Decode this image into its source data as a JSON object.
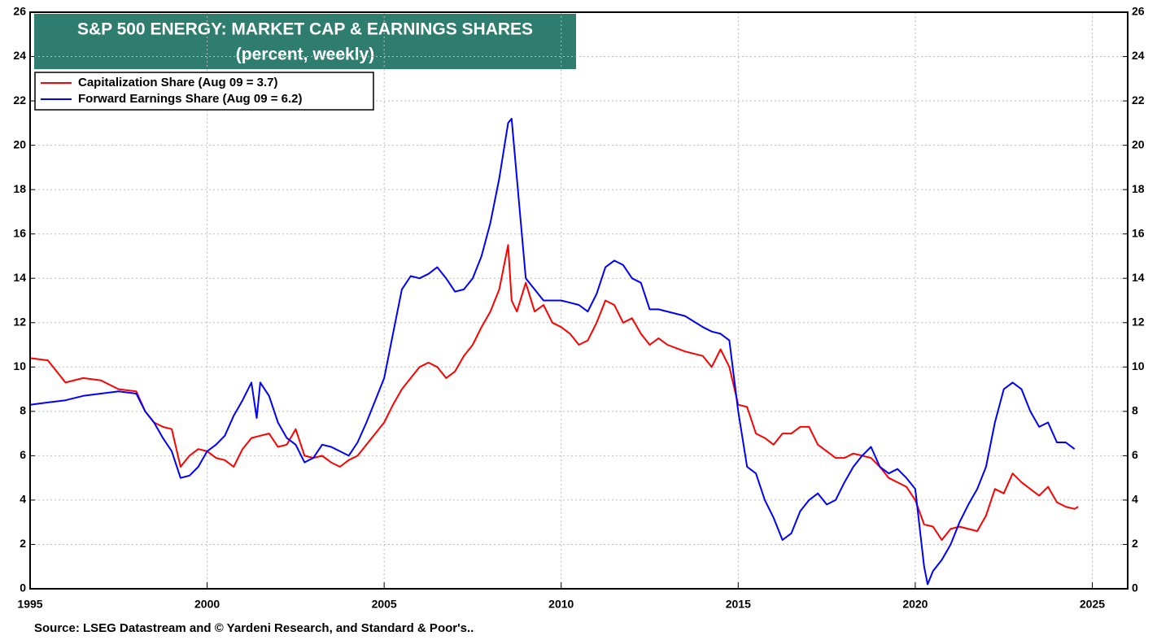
{
  "chart_data": {
    "type": "line",
    "title": "S&P 500 ENERGY: MARKET CAP & EARNINGS SHARES",
    "subtitle": "(percent, weekly)",
    "source": "Source: LSEG Datastream and © Yardeni Research, and Standard & Poor's..",
    "xlim": [
      1995,
      2026
    ],
    "xticks": [
      1995,
      2000,
      2005,
      2010,
      2015,
      2020,
      2025
    ],
    "ylim": [
      0,
      26
    ],
    "yticks": [
      0,
      2,
      4,
      6,
      8,
      10,
      12,
      14,
      16,
      18,
      20,
      22,
      24,
      26
    ],
    "y2lim": [
      0,
      26
    ],
    "y2ticks": [
      0,
      2,
      4,
      6,
      8,
      10,
      12,
      14,
      16,
      18,
      20,
      22,
      24,
      26
    ],
    "grid": true,
    "legend": "upper left",
    "series": [
      {
        "name": "Capitalization Share  (Aug 09 = 3.7)",
        "color": "#ff0000",
        "x": [
          1995,
          1995.5,
          1996,
          1996.5,
          1997,
          1997.5,
          1998,
          1998.25,
          1998.5,
          1998.75,
          1999,
          1999.25,
          1999.5,
          1999.75,
          2000,
          2000.25,
          2000.5,
          2000.75,
          2001,
          2001.25,
          2001.5,
          2001.75,
          2002,
          2002.25,
          2002.5,
          2002.75,
          2003,
          2003.25,
          2003.5,
          2003.75,
          2004,
          2004.25,
          2004.5,
          2004.75,
          2005,
          2005.25,
          2005.5,
          2005.75,
          2006,
          2006.25,
          2006.5,
          2006.75,
          2007,
          2007.25,
          2007.5,
          2007.75,
          2008,
          2008.25,
          2008.5,
          2008.6,
          2008.75,
          2009,
          2009.25,
          2009.5,
          2009.75,
          2010,
          2010.25,
          2010.5,
          2010.75,
          2011,
          2011.25,
          2011.5,
          2011.75,
          2012,
          2012.25,
          2012.5,
          2012.75,
          2013,
          2013.5,
          2014,
          2014.25,
          2014.5,
          2014.75,
          2015,
          2015.25,
          2015.5,
          2015.75,
          2016,
          2016.25,
          2016.5,
          2016.75,
          2017,
          2017.25,
          2017.5,
          2017.75,
          2018,
          2018.25,
          2018.5,
          2018.75,
          2019,
          2019.25,
          2019.5,
          2019.75,
          2020,
          2020.25,
          2020.5,
          2020.75,
          2021,
          2021.25,
          2021.5,
          2021.75,
          2022,
          2022.25,
          2022.5,
          2022.75,
          2023,
          2023.25,
          2023.5,
          2023.75,
          2024,
          2024.25,
          2024.5,
          2024.6
        ],
        "values": [
          10.4,
          10.3,
          9.3,
          9.5,
          9.4,
          9.0,
          8.9,
          8.0,
          7.5,
          7.3,
          7.2,
          5.5,
          6.0,
          6.3,
          6.2,
          5.9,
          5.8,
          5.5,
          6.3,
          6.8,
          6.9,
          7.0,
          6.4,
          6.5,
          7.2,
          6.0,
          5.9,
          6.0,
          5.7,
          5.5,
          5.8,
          6.0,
          6.5,
          7.0,
          7.5,
          8.3,
          9.0,
          9.5,
          10.0,
          10.2,
          10.0,
          9.5,
          9.8,
          10.5,
          11.0,
          11.8,
          12.5,
          13.5,
          15.5,
          13.0,
          12.5,
          13.8,
          12.5,
          12.8,
          12.0,
          11.8,
          11.5,
          11.0,
          11.2,
          12.0,
          13.0,
          12.8,
          12.0,
          12.2,
          11.5,
          11.0,
          11.3,
          11.0,
          10.7,
          10.5,
          10.0,
          10.8,
          10.0,
          8.3,
          8.2,
          7.0,
          6.8,
          6.5,
          7.0,
          7.0,
          7.3,
          7.3,
          6.5,
          6.2,
          5.9,
          5.9,
          6.1,
          6.0,
          5.9,
          5.5,
          5.0,
          4.8,
          4.6,
          4.0,
          2.9,
          2.8,
          2.2,
          2.7,
          2.8,
          2.7,
          2.6,
          3.3,
          4.5,
          4.3,
          5.2,
          4.8,
          4.5,
          4.2,
          4.6,
          3.9,
          3.7,
          3.6,
          3.7
        ]
      },
      {
        "name": "Forward Earnings Share (Aug 09 = 6.2)",
        "color": "#0000ff",
        "x": [
          1995,
          1995.5,
          1996,
          1996.5,
          1997,
          1997.5,
          1998,
          1998.25,
          1998.5,
          1998.75,
          1999,
          1999.25,
          1999.5,
          1999.75,
          2000,
          2000.25,
          2000.5,
          2000.75,
          2001,
          2001.25,
          2001.4,
          2001.5,
          2001.75,
          2002,
          2002.25,
          2002.5,
          2002.75,
          2003,
          2003.25,
          2003.5,
          2003.75,
          2004,
          2004.25,
          2004.5,
          2004.75,
          2005,
          2005.25,
          2005.5,
          2005.75,
          2006,
          2006.25,
          2006.5,
          2006.75,
          2007,
          2007.25,
          2007.5,
          2007.75,
          2008,
          2008.25,
          2008.5,
          2008.6,
          2008.75,
          2009,
          2009.25,
          2009.5,
          2009.75,
          2010,
          2010.25,
          2010.5,
          2010.75,
          2011,
          2011.25,
          2011.5,
          2011.75,
          2012,
          2012.25,
          2012.5,
          2012.75,
          2013,
          2013.5,
          2014,
          2014.25,
          2014.5,
          2014.75,
          2015,
          2015.25,
          2015.5,
          2015.75,
          2016,
          2016.25,
          2016.5,
          2016.75,
          2017,
          2017.25,
          2017.5,
          2017.75,
          2018,
          2018.25,
          2018.5,
          2018.75,
          2019,
          2019.25,
          2019.5,
          2019.75,
          2020,
          2020.25,
          2020.35,
          2020.5,
          2020.75,
          2021,
          2021.25,
          2021.5,
          2021.75,
          2022,
          2022.25,
          2022.5,
          2022.75,
          2023,
          2023.25,
          2023.5,
          2023.75,
          2024,
          2024.25,
          2024.5
        ],
        "values": [
          8.3,
          8.4,
          8.5,
          8.7,
          8.8,
          8.9,
          8.8,
          8.0,
          7.5,
          6.8,
          6.2,
          5.0,
          5.1,
          5.5,
          6.2,
          6.5,
          6.9,
          7.8,
          8.5,
          9.3,
          7.7,
          9.3,
          8.7,
          7.5,
          6.8,
          6.5,
          5.7,
          5.9,
          6.5,
          6.4,
          6.2,
          6.0,
          6.6,
          7.5,
          8.5,
          9.5,
          11.5,
          13.5,
          14.1,
          14.0,
          14.2,
          14.5,
          14.0,
          13.4,
          13.5,
          14.0,
          15.0,
          16.5,
          18.5,
          21.0,
          21.2,
          18.5,
          14.0,
          13.5,
          13.0,
          13.0,
          13.0,
          12.9,
          12.8,
          12.5,
          13.3,
          14.5,
          14.8,
          14.6,
          14.0,
          13.8,
          12.6,
          12.6,
          12.5,
          12.3,
          11.8,
          11.6,
          11.5,
          11.2,
          8.0,
          5.5,
          5.2,
          4.0,
          3.2,
          2.2,
          2.5,
          3.5,
          4.0,
          4.3,
          3.8,
          4.0,
          4.8,
          5.5,
          6.0,
          6.4,
          5.5,
          5.2,
          5.4,
          5.0,
          4.5,
          1.0,
          0.2,
          0.8,
          1.3,
          2.0,
          3.0,
          3.8,
          4.5,
          5.5,
          7.5,
          9.0,
          9.3,
          9.0,
          8.0,
          7.3,
          7.5,
          6.6,
          6.6,
          6.3
        ]
      }
    ]
  }
}
